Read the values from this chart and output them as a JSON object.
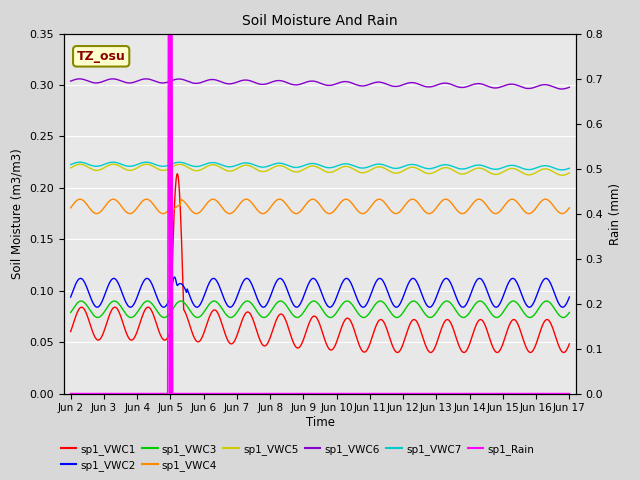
{
  "title": "Soil Moisture And Rain",
  "xlabel": "Time",
  "ylabel_left": "Soil Moisture (m3/m3)",
  "ylabel_right": "Rain (mm)",
  "ylim_left": [
    0.0,
    0.35
  ],
  "ylim_right": [
    0.0,
    0.8
  ],
  "yticks_left": [
    0.0,
    0.05,
    0.1,
    0.15,
    0.2,
    0.25,
    0.3,
    0.35
  ],
  "yticks_right": [
    0.0,
    0.1,
    0.2,
    0.3,
    0.4,
    0.5,
    0.6,
    0.7,
    0.8
  ],
  "xtick_labels": [
    "Jun 2",
    "Jun 3",
    "Jun 4",
    "Jun 5",
    "Jun 6",
    "Jun 7",
    "Jun 8",
    "Jun 9",
    "Jun 10",
    "Jun 11",
    "Jun 12",
    "Jun 13",
    "Jun 14",
    "Jun 15",
    "Jun 16",
    "Jun 17"
  ],
  "rain_spike_day": 3.0,
  "station_label": "TZ_osu",
  "station_label_color": "#8b0000",
  "station_box_facecolor": "#ffffcc",
  "station_box_edgecolor": "#888800",
  "colors": {
    "VWC1": "#ff0000",
    "VWC2": "#0000ff",
    "VWC3": "#00cc00",
    "VWC4": "#ff8800",
    "VWC5": "#cccc00",
    "VWC6": "#8800cc",
    "VWC7": "#00cccc",
    "Rain": "#ff00ff"
  },
  "background_color": "#d8d8d8",
  "plot_bg_color": "#e8e8e8",
  "grid_color": "#ffffff",
  "figsize": [
    6.4,
    4.8
  ],
  "dpi": 100
}
